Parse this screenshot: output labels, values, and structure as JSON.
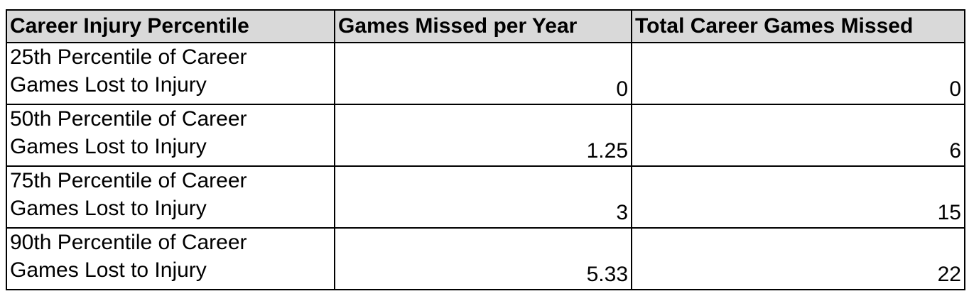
{
  "table": {
    "header": [
      "Career Injury Percentile",
      "Games Missed per Year",
      "Total Career Games Missed"
    ],
    "rows": [
      [
        "25th Percentile of Career Games Lost to Injury",
        "0",
        "0"
      ],
      [
        "50th Percentile of Career Games Lost to Injury",
        "1.25",
        "6"
      ],
      [
        "75th Percentile of Career Games Lost to Injury",
        "3",
        "15"
      ],
      [
        "90th Percentile of Career Games Lost to Injury",
        "5.33",
        "22"
      ]
    ]
  }
}
